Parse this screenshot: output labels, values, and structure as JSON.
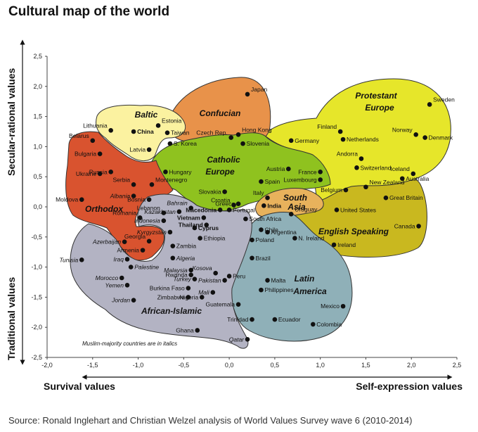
{
  "title": "Cultural map of the world",
  "source": "Source: Ronald Inglehart and Christian Welzel analysis of World Values Survey wave 6 (2010-2014)",
  "chart_data": {
    "type": "scatter",
    "title": "Cultural map of the world",
    "xlabel_left": "Survival values",
    "xlabel_right": "Self-expression values",
    "ylabel_top": "Secular-rational values",
    "ylabel_bottom": "Traditional values",
    "xlim": [
      -2.0,
      2.5
    ],
    "ylim": [
      -2.5,
      2.5
    ],
    "xticks": [
      "-2,0",
      "-1,5",
      "-1,0",
      "-0,5",
      "0,0",
      "0,5",
      "1,0",
      "1,5",
      "2,0",
      "2,5"
    ],
    "yticks": [
      "2,5",
      "2,0",
      "1,5",
      "1,0",
      "0,5",
      "0,0",
      "-0,5",
      "-1,0",
      "-1,5",
      "-2,0",
      "-2,5"
    ],
    "note": "Muslim-majority countries are in italics",
    "regions": [
      {
        "name": "Protestant Europe",
        "color": "#e6e62a"
      },
      {
        "name": "English Speaking",
        "color": "#c9b81f"
      },
      {
        "name": "Catholic Europe",
        "color": "#8fc21f"
      },
      {
        "name": "Confucian",
        "color": "#e8924a"
      },
      {
        "name": "Baltic",
        "color": "#fbf2a0"
      },
      {
        "name": "Orthodox",
        "color": "#d9532f"
      },
      {
        "name": "South Asia",
        "color": "#e8b25c"
      },
      {
        "name": "Latin America",
        "color": "#8fb0b8"
      },
      {
        "name": "African-Islamic",
        "color": "#b3b3c3"
      }
    ],
    "points": [
      {
        "name": "Sweden",
        "x": 2.2,
        "y": 1.7
      },
      {
        "name": "Norway",
        "x": 2.05,
        "y": 1.2
      },
      {
        "name": "Denmark",
        "x": 2.15,
        "y": 1.15
      },
      {
        "name": "Finland",
        "x": 1.22,
        "y": 1.25
      },
      {
        "name": "Netherlands",
        "x": 1.25,
        "y": 1.12
      },
      {
        "name": "Germany",
        "x": 0.68,
        "y": 1.1
      },
      {
        "name": "Switzerland",
        "x": 1.4,
        "y": 0.65
      },
      {
        "name": "Andorra",
        "x": 1.45,
        "y": 0.8
      },
      {
        "name": "Iceland",
        "x": 2.02,
        "y": 0.55
      },
      {
        "name": "France",
        "x": 1.0,
        "y": 0.58
      },
      {
        "name": "Luxembourg",
        "x": 1.0,
        "y": 0.45
      },
      {
        "name": "Belgium",
        "x": 1.28,
        "y": 0.28
      },
      {
        "name": "New Zealand",
        "x": 1.5,
        "y": 0.33
      },
      {
        "name": "Australia",
        "x": 1.9,
        "y": 0.47
      },
      {
        "name": "Great Britain",
        "x": 1.72,
        "y": 0.15
      },
      {
        "name": "United States",
        "x": 1.18,
        "y": -0.05
      },
      {
        "name": "Canada",
        "x": 2.08,
        "y": -0.32
      },
      {
        "name": "N. Ireland",
        "x": 0.72,
        "y": -0.52
      },
      {
        "name": "Ireland",
        "x": 1.15,
        "y": -0.63
      },
      {
        "name": "Japan",
        "x": 0.2,
        "y": 1.87
      },
      {
        "name": "Hong Kong",
        "x": 0.1,
        "y": 1.2
      },
      {
        "name": "Taiwan",
        "x": -0.68,
        "y": 1.23
      },
      {
        "name": "S. Korea",
        "x": -0.65,
        "y": 1.05
      },
      {
        "name": "China",
        "x": -1.05,
        "y": 1.25
      },
      {
        "name": "Czech Rep.",
        "x": 0.02,
        "y": 1.15
      },
      {
        "name": "Slovenia",
        "x": 0.15,
        "y": 1.05
      },
      {
        "name": "Estonia",
        "x": -0.78,
        "y": 1.35
      },
      {
        "name": "Lithuania",
        "x": -1.3,
        "y": 1.27
      },
      {
        "name": "Latvia",
        "x": -0.88,
        "y": 0.95
      },
      {
        "name": "Belarus",
        "x": -1.5,
        "y": 1.1
      },
      {
        "name": "Bulgaria",
        "x": -1.42,
        "y": 0.88
      },
      {
        "name": "Ukraine",
        "x": -1.42,
        "y": 0.55
      },
      {
        "name": "Russia",
        "x": -1.3,
        "y": 0.58
      },
      {
        "name": "Moldova",
        "x": -1.62,
        "y": 0.12
      },
      {
        "name": "Serbia",
        "x": -1.05,
        "y": 0.37
      },
      {
        "name": "Montenegro",
        "x": -0.85,
        "y": 0.37
      },
      {
        "name": "Albania",
        "x": -1.05,
        "y": 0.18
      },
      {
        "name": "Bosnia",
        "x": -0.88,
        "y": 0.12
      },
      {
        "name": "Romania",
        "x": -0.98,
        "y": -0.18
      },
      {
        "name": "Georgia",
        "x": -0.88,
        "y": -0.57
      },
      {
        "name": "Armenia",
        "x": -0.95,
        "y": -0.72
      },
      {
        "name": "Azerbaijan",
        "x": -1.15,
        "y": -0.58
      },
      {
        "name": "Hungary",
        "x": -0.7,
        "y": 0.58
      },
      {
        "name": "Slovakia",
        "x": -0.05,
        "y": 0.25
      },
      {
        "name": "Croatia",
        "x": 0.05,
        "y": 0.03
      },
      {
        "name": "Austria",
        "x": 0.65,
        "y": 0.63
      },
      {
        "name": "Spain",
        "x": 0.35,
        "y": 0.42
      },
      {
        "name": "Italy",
        "x": 0.42,
        "y": 0.15
      },
      {
        "name": "Greece",
        "x": 0.1,
        "y": 0.05
      },
      {
        "name": "Portugal",
        "x": 0.0,
        "y": -0.05
      },
      {
        "name": "Macedonia",
        "x": -0.1,
        "y": -0.05
      },
      {
        "name": "India",
        "x": 0.38,
        "y": 0.02
      },
      {
        "name": "South Africa",
        "x": 0.18,
        "y": -0.2
      },
      {
        "name": "Uruguay",
        "x": 0.68,
        "y": -0.12
      },
      {
        "name": "Chile",
        "x": 0.35,
        "y": -0.38
      },
      {
        "name": "Argentina",
        "x": 0.42,
        "y": -0.42
      },
      {
        "name": "Poland",
        "x": 0.25,
        "y": -0.55
      },
      {
        "name": "Brazil",
        "x": 0.25,
        "y": -0.85
      },
      {
        "name": "Peru",
        "x": 0.0,
        "y": -1.15
      },
      {
        "name": "Malta",
        "x": 0.42,
        "y": -1.22
      },
      {
        "name": "Philippines",
        "x": 0.35,
        "y": -1.38
      },
      {
        "name": "Guatemala",
        "x": 0.1,
        "y": -1.62
      },
      {
        "name": "Trinidad",
        "x": 0.25,
        "y": -1.87
      },
      {
        "name": "Ecuador",
        "x": 0.5,
        "y": -1.87
      },
      {
        "name": "Colombia",
        "x": 0.92,
        "y": -1.95
      },
      {
        "name": "Mexico",
        "x": 1.25,
        "y": -1.65
      },
      {
        "name": "Bahrain",
        "x": -0.42,
        "y": -0.02
      },
      {
        "name": "Lebanon",
        "x": -0.72,
        "y": -0.1
      },
      {
        "name": "Kazakhstan",
        "x": -0.55,
        "y": -0.08
      },
      {
        "name": "Indonesia",
        "x": -0.72,
        "y": -0.23
      },
      {
        "name": "Vietnam",
        "x": -0.28,
        "y": -0.18
      },
      {
        "name": "Thailand",
        "x": -0.25,
        "y": -0.3
      },
      {
        "name": "Cyprus",
        "x": -0.38,
        "y": -0.35
      },
      {
        "name": "Kyrgyzstan",
        "x": -0.65,
        "y": -0.42
      },
      {
        "name": "Ethiopia",
        "x": -0.32,
        "y": -0.52
      },
      {
        "name": "Zambia",
        "x": -0.62,
        "y": -0.65
      },
      {
        "name": "Algeria",
        "x": -0.62,
        "y": -0.85
      },
      {
        "name": "Tunisia",
        "x": -1.62,
        "y": -0.88
      },
      {
        "name": "Iraq",
        "x": -1.12,
        "y": -0.87
      },
      {
        "name": "Palestine",
        "x": -1.08,
        "y": -1.0
      },
      {
        "name": "Morocco",
        "x": -1.18,
        "y": -1.18
      },
      {
        "name": "Yemen",
        "x": -1.12,
        "y": -1.3
      },
      {
        "name": "Jordan",
        "x": -1.05,
        "y": -1.55
      },
      {
        "name": "Malaysia",
        "x": -0.42,
        "y": -1.05
      },
      {
        "name": "Rwanda",
        "x": -0.42,
        "y": -1.13
      },
      {
        "name": "Turkey",
        "x": -0.38,
        "y": -1.2
      },
      {
        "name": "Burkina Faso",
        "x": -0.45,
        "y": -1.35
      },
      {
        "name": "Kosova",
        "x": -0.15,
        "y": -1.1
      },
      {
        "name": "Pakistan",
        "x": -0.05,
        "y": -1.22
      },
      {
        "name": "Mali",
        "x": -0.18,
        "y": -1.42
      },
      {
        "name": "Zimbabwe",
        "x": -0.45,
        "y": -1.5
      },
      {
        "name": "Nigeria",
        "x": -0.3,
        "y": -1.5
      },
      {
        "name": "Ghana",
        "x": -0.35,
        "y": -2.05
      },
      {
        "name": "Qatar",
        "x": 0.2,
        "y": -2.2
      }
    ]
  }
}
